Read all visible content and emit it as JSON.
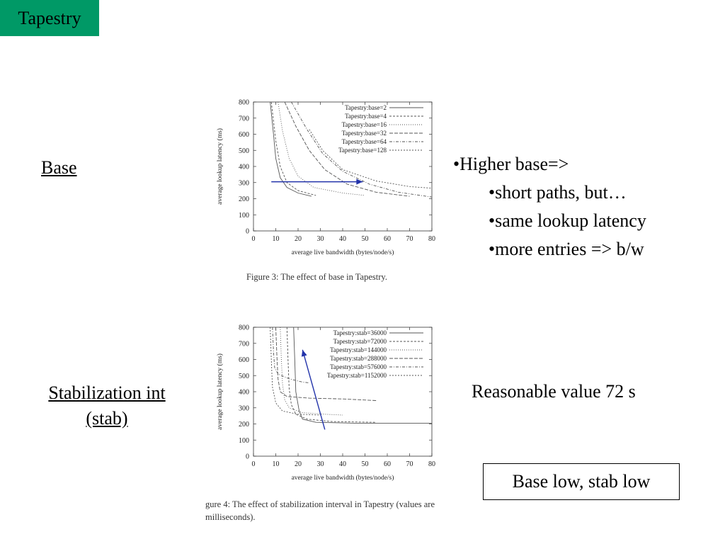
{
  "slide": {
    "title": "Tapestry",
    "label_base": "Base",
    "label_stab_line1": "Stabilization int",
    "label_stab_line2": "(stab)",
    "bullets": [
      {
        "text": "•Higher base=>",
        "level": 0
      },
      {
        "text": "•short paths, but…",
        "level": 1
      },
      {
        "text": "•same lookup latency",
        "level": 1
      },
      {
        "text": "•more entries => b/w",
        "level": 1
      }
    ],
    "reasonable": "Reasonable value 72 s",
    "boxed_note": "Base low, stab low",
    "caption1": "Figure 3: The effect of base in Tapestry.",
    "caption2_line1": "gure 4: The effect of stabilization interval in Tapestry (values are",
    "caption2_line2": "milliseconds)."
  },
  "chart_data": [
    {
      "type": "line",
      "xlabel": "average live bandwidth (bytes/node/s)",
      "ylabel": "average lookup latency (ms)",
      "xlim": [
        0,
        80
      ],
      "ylim": [
        0,
        800
      ],
      "xticks": [
        0,
        10,
        20,
        30,
        40,
        50,
        60,
        70,
        80
      ],
      "yticks": [
        0,
        100,
        200,
        300,
        400,
        500,
        600,
        700,
        800
      ],
      "legend": "top-right",
      "series": [
        {
          "name": "Tapestry:base=2",
          "dash": "",
          "points": [
            [
              7.5,
              800
            ],
            [
              9,
              600
            ],
            [
              10,
              450
            ],
            [
              12,
              330
            ],
            [
              15,
              270
            ],
            [
              20,
              235
            ],
            [
              26,
              215
            ]
          ]
        },
        {
          "name": "Tapestry:base=4",
          "dash": "3,2",
          "points": [
            [
              8,
              800
            ],
            [
              10,
              560
            ],
            [
              12,
              400
            ],
            [
              15,
              300
            ],
            [
              20,
              250
            ],
            [
              28,
              220
            ]
          ]
        },
        {
          "name": "Tapestry:base=16",
          "dash": "1,2",
          "points": [
            [
              11,
              800
            ],
            [
              13,
              620
            ],
            [
              16,
              450
            ],
            [
              20,
              340
            ],
            [
              27,
              270
            ],
            [
              40,
              235
            ],
            [
              50,
              220
            ]
          ]
        },
        {
          "name": "Tapestry:base=32",
          "dash": "5,2",
          "points": [
            [
              14,
              800
            ],
            [
              19,
              650
            ],
            [
              25,
              500
            ],
            [
              32,
              380
            ],
            [
              42,
              290
            ],
            [
              55,
              240
            ],
            [
              70,
              215
            ]
          ]
        },
        {
          "name": "Tapestry:base=64",
          "dash": "4,2,1,2",
          "points": [
            [
              17,
              800
            ],
            [
              24,
              630
            ],
            [
              31,
              480
            ],
            [
              40,
              370
            ],
            [
              52,
              290
            ],
            [
              65,
              240
            ],
            [
              80,
              210
            ]
          ]
        },
        {
          "name": "Tapestry:base=128",
          "dash": "2,2",
          "points": [
            [
              25,
              630
            ],
            [
              31,
              500
            ],
            [
              40,
              380
            ],
            [
              55,
              310
            ],
            [
              70,
              275
            ],
            [
              80,
              265
            ]
          ]
        }
      ],
      "annotation": {
        "type": "arrow",
        "color": "#2233aa",
        "from": [
          8,
          305
        ],
        "to": [
          49,
          305
        ]
      }
    },
    {
      "type": "line",
      "xlabel": "average live bandwidth (bytes/node/s)",
      "ylabel": "average lookup latency (ms)",
      "xlim": [
        0,
        80
      ],
      "ylim": [
        0,
        800
      ],
      "xticks": [
        0,
        10,
        20,
        30,
        40,
        50,
        60,
        70,
        80
      ],
      "yticks": [
        0,
        100,
        200,
        300,
        400,
        500,
        600,
        700,
        800
      ],
      "legend": "top-right",
      "series": [
        {
          "name": "Tapestry:stab=36000",
          "dash": "",
          "points": [
            [
              18,
              800
            ],
            [
              18.5,
              600
            ],
            [
              19,
              400
            ],
            [
              20.5,
              280
            ],
            [
              22,
              230
            ],
            [
              28,
              210
            ],
            [
              45,
              205
            ],
            [
              80,
              205
            ]
          ]
        },
        {
          "name": "Tapestry:stab=72000",
          "dash": "3,2",
          "points": [
            [
              15,
              800
            ],
            [
              15.5,
              600
            ],
            [
              16,
              420
            ],
            [
              17,
              320
            ],
            [
              19,
              260
            ],
            [
              24,
              230
            ],
            [
              35,
              215
            ],
            [
              55,
              210
            ]
          ]
        },
        {
          "name": "Tapestry:stab=144000",
          "dash": "1,2",
          "points": [
            [
              12,
              800
            ],
            [
              12.5,
              600
            ],
            [
              13,
              450
            ],
            [
              14,
              350
            ],
            [
              16,
              300
            ],
            [
              22,
              270
            ],
            [
              32,
              260
            ],
            [
              40,
              255
            ]
          ]
        },
        {
          "name": "Tapestry:stab=288000",
          "dash": "5,2",
          "points": [
            [
              10,
              800
            ],
            [
              10.5,
              620
            ],
            [
              11,
              480
            ],
            [
              12,
              400
            ],
            [
              15,
              370
            ],
            [
              25,
              360
            ],
            [
              40,
              355
            ],
            [
              55,
              345
            ]
          ]
        },
        {
          "name": "Tapestry:stab=576000",
          "dash": "4,2,1,2",
          "points": [
            [
              8.5,
              800
            ],
            [
              9,
              650
            ],
            [
              9.5,
              550
            ],
            [
              11,
              510
            ],
            [
              16,
              480
            ],
            [
              22,
              460
            ],
            [
              25,
              455
            ]
          ]
        },
        {
          "name": "Tapestry:stab=1152000",
          "dash": "2,2",
          "points": [
            [
              7.5,
              800
            ],
            [
              8,
              600
            ],
            [
              8.5,
              430
            ],
            [
              10,
              330
            ],
            [
              13,
              280
            ],
            [
              20,
              260
            ],
            [
              30,
              255
            ]
          ]
        }
      ],
      "annotation": {
        "type": "arrow",
        "color": "#2233aa",
        "from": [
          32,
          165
        ],
        "to": [
          22,
          660
        ]
      }
    }
  ]
}
